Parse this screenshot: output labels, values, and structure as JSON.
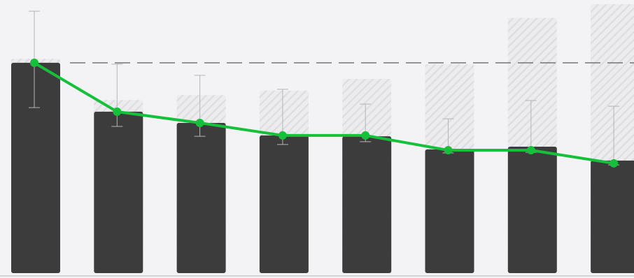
{
  "chart_data": {
    "type": "bar",
    "ylim": [
      0,
      100
    ],
    "bar_values": [
      77.0,
      59.1,
      55.0,
      50.4,
      50.1,
      45.3,
      46.3,
      41.2
    ],
    "bar_color": "#3c3c3c",
    "target_values": [
      78.5,
      63.4,
      65.2,
      66.8,
      71.1,
      76.5,
      93.4,
      98.5
    ],
    "target_color": "#e2e2e4",
    "line_values": [
      77.0,
      59.1,
      55.0,
      50.4,
      50.4,
      45.0,
      45.0,
      40.2
    ],
    "line_color": "#16c03a",
    "error_low": [
      60.6,
      53.7,
      50.1,
      47.1,
      48.1,
      44.0,
      44.2,
      39.6
    ],
    "error_high": [
      95.9,
      76.5,
      72.4,
      67.3,
      61.9,
      56.5,
      63.2,
      61.1
    ],
    "error_color": "#b5b5b5",
    "reference_value": 77.0,
    "reference_color": "#6a6a6a"
  }
}
